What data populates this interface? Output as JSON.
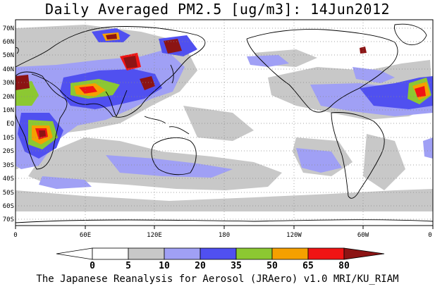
{
  "title": "Daily Averaged PM2.5 [ug/m3]: 14Jun2012",
  "footer": "The Japanese Reanalysis for Aerosol (JRAero) v1.0 MRI/KU_RIAM",
  "map": {
    "lon_range": [
      0,
      360
    ],
    "lat_range": [
      -75,
      75
    ],
    "lat_ticks": [
      "70N",
      "60N",
      "50N",
      "40N",
      "30N",
      "20N",
      "10N",
      "EQ",
      "10S",
      "20S",
      "30S",
      "40S",
      "50S",
      "60S",
      "70S"
    ],
    "lon_ticks": [
      "0",
      "60E",
      "120E",
      "180",
      "120W",
      "60W",
      "0"
    ],
    "grid": "dotted"
  },
  "colorbar": {
    "levels": [
      "0",
      "5",
      "10",
      "20",
      "35",
      "50",
      "65",
      "80"
    ],
    "colors": [
      "#ffffff",
      "#c8c8c8",
      "#a0a0f5",
      "#5050f0",
      "#8cc832",
      "#f5a000",
      "#f01414",
      "#8c1414"
    ]
  }
}
